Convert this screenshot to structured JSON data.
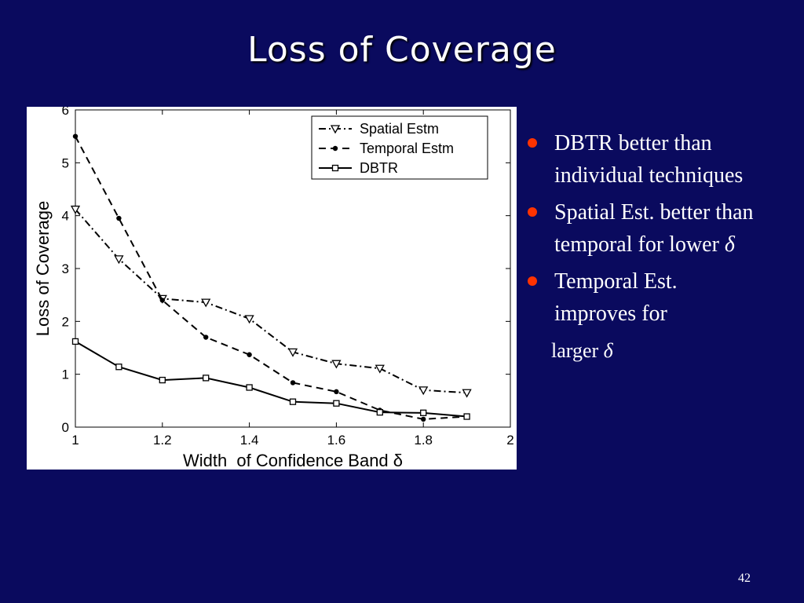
{
  "slide": {
    "title": "Loss of Coverage",
    "page_number": "42",
    "bullets": [
      {
        "text": "DBTR better than individual techniques"
      },
      {
        "text": "Spatial Est. better than temporal for lower ",
        "symbol": "δ"
      },
      {
        "text": "Temporal Est. improves for"
      }
    ],
    "continuation": {
      "text": "larger ",
      "symbol": "δ"
    }
  },
  "chart_data": {
    "type": "line",
    "xlabel": "Width  of Confidence Band δ",
    "ylabel": "Loss of Coverage",
    "xlim": [
      1,
      2
    ],
    "ylim": [
      0,
      6
    ],
    "x_ticks": [
      "1",
      "1.2",
      "1.4",
      "1.6",
      "1.8",
      "2"
    ],
    "y_ticks": [
      "0",
      "1",
      "2",
      "3",
      "4",
      "5",
      "6"
    ],
    "grid": false,
    "legend_position": "top-right",
    "x": [
      1.0,
      1.1,
      1.2,
      1.3,
      1.4,
      1.5,
      1.6,
      1.7,
      1.8,
      1.9
    ],
    "series": [
      {
        "name": "Spatial Estm",
        "style": "dashdot",
        "marker": "triangle-down",
        "values": [
          4.12,
          3.18,
          2.43,
          2.36,
          2.05,
          1.42,
          1.2,
          1.11,
          0.7,
          0.65
        ]
      },
      {
        "name": "Temporal Estm",
        "style": "dashed",
        "marker": "dot",
        "values": [
          5.5,
          3.95,
          2.4,
          1.7,
          1.37,
          0.84,
          0.67,
          0.32,
          0.15,
          0.2
        ]
      },
      {
        "name": "DBTR",
        "style": "solid",
        "marker": "square",
        "values": [
          1.62,
          1.14,
          0.89,
          0.93,
          0.75,
          0.48,
          0.45,
          0.28,
          0.27,
          0.2
        ]
      }
    ]
  }
}
